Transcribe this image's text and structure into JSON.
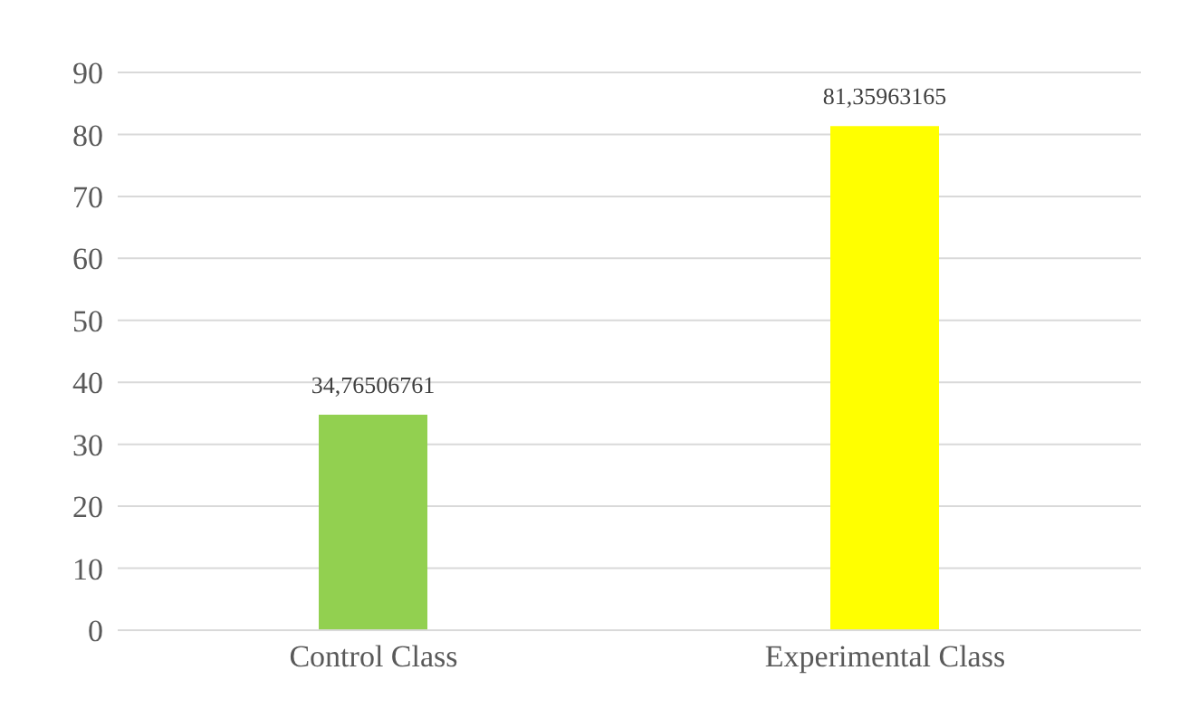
{
  "chart_data": {
    "type": "bar",
    "categories": [
      "Control Class",
      "Experimental Class"
    ],
    "values": [
      34.76506761,
      81.35963165
    ],
    "colors": [
      "#92d050",
      "#ffff00"
    ],
    "value_labels": [
      "34,76506761",
      "81,35963165"
    ],
    "ylim": [
      0,
      90
    ],
    "yticks": [
      0,
      10,
      20,
      30,
      40,
      50,
      60,
      70,
      80,
      90
    ],
    "grid": "y"
  }
}
